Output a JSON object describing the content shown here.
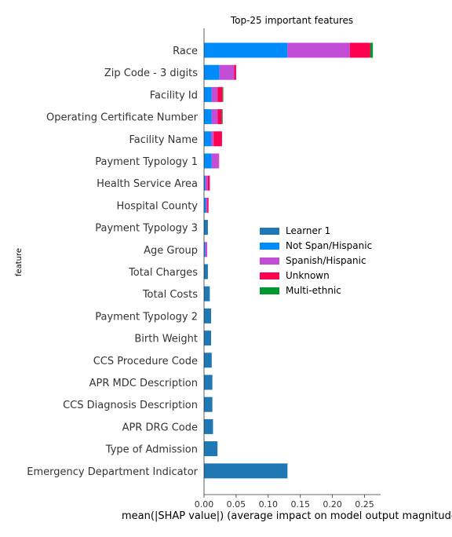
{
  "chart_data": {
    "type": "bar",
    "orientation": "horizontal",
    "stacked": true,
    "title": "Top-25 important features",
    "xlabel": "mean(|SHAP value|) (average impact on model output magnitude)",
    "ylabel": "feature",
    "xlim": [
      0,
      0.275
    ],
    "xticks": [
      "0.00",
      "0.05",
      "0.10",
      "0.15",
      "0.20",
      "0.25"
    ],
    "grid": false,
    "legend_position": "center-right",
    "categories": [
      "Race",
      "Zip Code - 3 digits",
      "Facility Id",
      "Operating Certificate Number",
      "Facility Name",
      "Payment Typology 1",
      "Health Service Area",
      "Hospital County",
      "Payment Typology 3",
      "Age Group",
      "Total Charges",
      "Total Costs",
      "Payment Typology 2",
      "Birth Weight",
      "CCS Procedure Code",
      "APR MDC Description",
      "CCS Diagnosis Description",
      "APR DRG Code",
      "Type of Admission",
      "Emergency Department Indicator"
    ],
    "series": [
      {
        "name": "Learner 1",
        "color": "#1f77b4",
        "values": [
          0,
          0,
          0,
          0,
          0,
          0,
          0,
          0,
          0.006,
          0,
          0.006,
          0.009,
          0.011,
          0.011,
          0.012,
          0.013,
          0.013,
          0.014,
          0.021,
          0.13
        ]
      },
      {
        "name": "Not Span/Hispanic",
        "color": "#008bfb",
        "values": [
          0.13,
          0.024,
          0.012,
          0.012,
          0.011,
          0.012,
          0.002,
          0.003,
          0,
          0.002,
          0,
          0,
          0,
          0,
          0,
          0,
          0,
          0,
          0,
          0
        ]
      },
      {
        "name": "Spanish/Hispanic",
        "color": "#c44dd7",
        "values": [
          0.097,
          0.023,
          0.009,
          0.009,
          0.004,
          0.011,
          0.004,
          0.002,
          0,
          0.003,
          0,
          0,
          0,
          0,
          0,
          0,
          0,
          0,
          0,
          0
        ]
      },
      {
        "name": "Unknown",
        "color": "#ff0051",
        "values": [
          0.032,
          0.003,
          0.008,
          0.007,
          0.013,
          0.0005,
          0.003,
          0.002,
          0,
          0,
          0,
          0,
          0,
          0,
          0,
          0,
          0,
          0,
          0,
          0
        ]
      },
      {
        "name": "Multi-ethnic",
        "color": "#00982e",
        "values": [
          0.004,
          0,
          0.001,
          0.001,
          0,
          0,
          0,
          0,
          0,
          0,
          0,
          0,
          0,
          0,
          0,
          0,
          0,
          0,
          0,
          0
        ]
      }
    ]
  }
}
